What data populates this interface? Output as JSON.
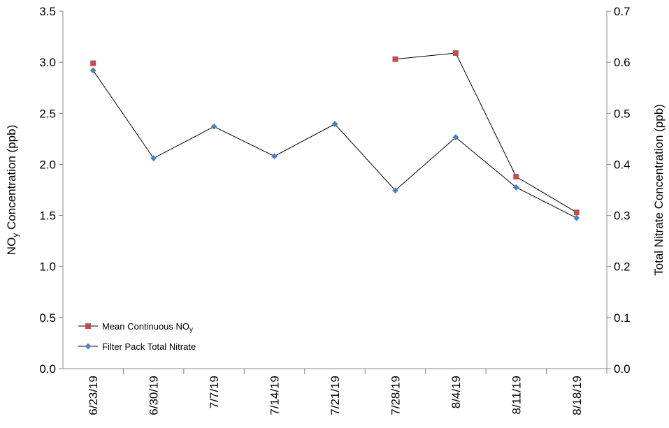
{
  "chart_data": {
    "type": "line",
    "categories": [
      "6/23/19",
      "6/30/19",
      "7/7/19",
      "7/14/19",
      "7/21/19",
      "7/28/19",
      "8/4/19",
      "8/11/19",
      "8/18/19"
    ],
    "ylabel": [
      "NO",
      "y",
      " Concentration (ppb)"
    ],
    "y2label": "Total Nitrate Concentration (ppb)",
    "ylim": [
      0,
      3.5
    ],
    "yticks": [
      {
        "value": 0,
        "label": "0.0"
      },
      0.5,
      {
        "value": 1,
        "label": "1.0"
      },
      1.5,
      {
        "value": 2,
        "label": "2.0"
      },
      2.5,
      {
        "value": 3,
        "label": "3.0"
      },
      3.5
    ],
    "y2lim": [
      0,
      0.7
    ],
    "y2ticks": [
      {
        "value": 0,
        "label": "0.0"
      },
      0.1,
      0.2,
      0.3,
      0.4,
      0.5,
      0.6,
      0.7
    ],
    "grid": false,
    "legend": "lower left",
    "series": [
      {
        "name": [
          "Mean Continuous NO",
          "y"
        ],
        "color": "#c0504d",
        "marker": "square",
        "values": [
          2.99,
          null,
          null,
          null,
          null,
          3.03,
          3.09,
          1.88,
          1.53
        ]
      },
      {
        "name": [
          "Filter Pack Total Nitrate"
        ],
        "color": "#4f81bd",
        "marker": "diamond",
        "axis": "y2",
        "values": [
          0.584,
          0.412,
          0.474,
          0.416,
          0.479,
          0.349,
          0.453,
          0.355,
          0.295
        ]
      }
    ]
  }
}
